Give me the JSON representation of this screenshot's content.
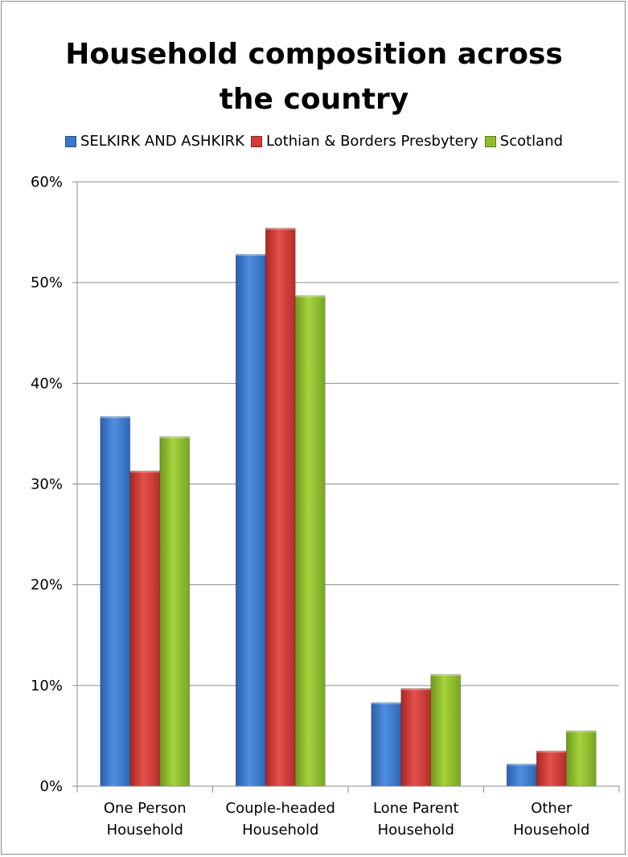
{
  "chart_data": {
    "type": "bar",
    "title": "Household composition across the country",
    "title_lines": [
      "Household composition across",
      "the country"
    ],
    "categories": [
      [
        "One Person",
        "Household"
      ],
      [
        "Couple-headed",
        "Household"
      ],
      [
        "Lone Parent",
        "Household"
      ],
      [
        "Other",
        "Household"
      ]
    ],
    "series": [
      {
        "name": "SELKIRK AND ASHKIRK",
        "color": "#3b78c9",
        "values": [
          36.7,
          52.8,
          8.3,
          2.2
        ]
      },
      {
        "name": "Lothian & Borders Presbytery",
        "color": "#d63a36",
        "values": [
          31.3,
          55.4,
          9.7,
          3.5
        ]
      },
      {
        "name": "Scotland",
        "color": "#8fbe2c",
        "values": [
          34.7,
          48.7,
          11.1,
          5.5
        ]
      }
    ],
    "yticks": [
      "0%",
      "10%",
      "20%",
      "30%",
      "40%",
      "50%",
      "60%"
    ],
    "ylim": [
      0,
      60
    ],
    "grid": true,
    "legend_position": "top"
  }
}
